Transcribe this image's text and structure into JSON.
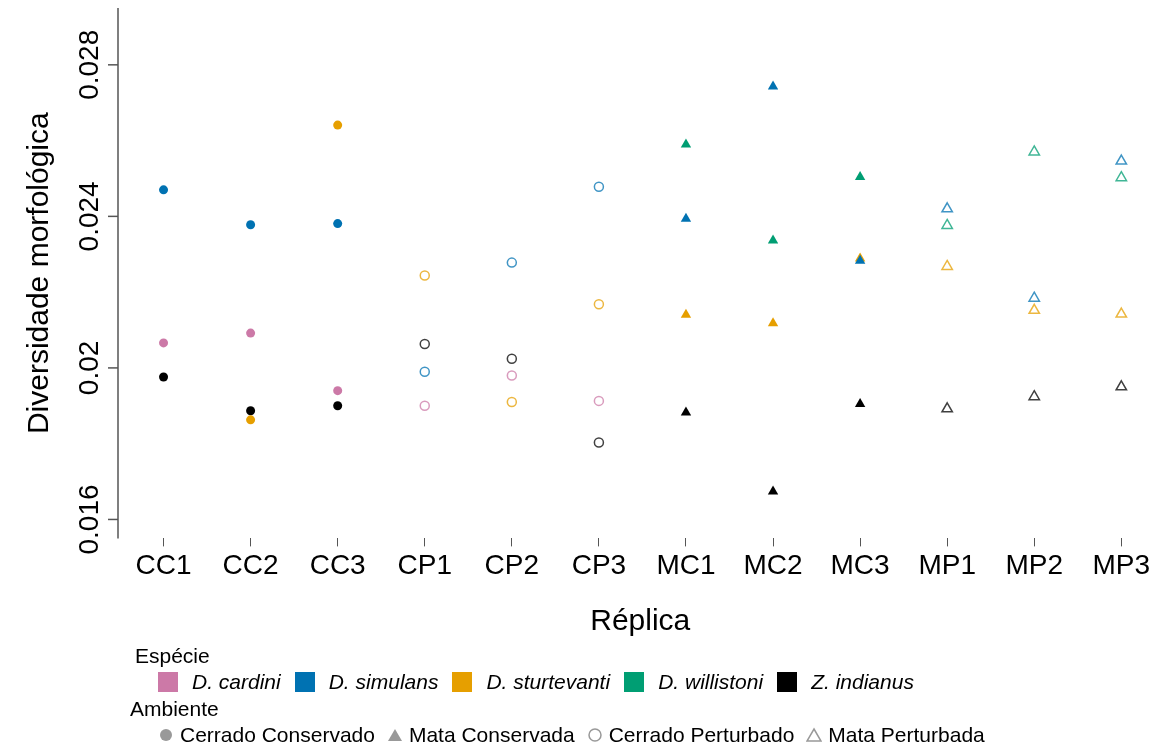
{
  "chart_data": {
    "type": "scatter",
    "xlabel": "Réplica",
    "ylabel": "Diversidade morfológica",
    "categories": [
      "CC1",
      "CC2",
      "CC3",
      "CP1",
      "CP2",
      "CP3",
      "MC1",
      "MC2",
      "MC3",
      "MP1",
      "MP2",
      "MP3"
    ],
    "ylim": [
      0.0155,
      0.0295
    ],
    "yticks": [
      0.016,
      0.02,
      0.024,
      0.028
    ],
    "grid": false,
    "legend": "bottom",
    "legend_title": [
      "Espécie",
      "Ambiente"
    ],
    "series": [
      {
        "name": "D. cardini",
        "color": "#cc79a7",
        "x": [
          "CC1",
          "CC2",
          "CC3",
          "CP1",
          "CP2",
          "CP3"
        ],
        "values": [
          0.02066,
          0.02092,
          0.0194,
          0.019,
          0.0198,
          0.01913
        ]
      },
      {
        "name": "D. simulans",
        "color": "#0072b2",
        "x": [
          "CC1",
          "CC2",
          "CC3",
          "CP1",
          "CP2",
          "CP3",
          "MC1",
          "MC2",
          "MC3",
          "MP1",
          "MP2",
          "MP3"
        ],
        "values": [
          0.0247,
          0.02378,
          0.02381,
          0.0199,
          0.02278,
          0.02478,
          0.02394,
          0.02743,
          0.02283,
          0.0242,
          0.02184,
          0.02546
        ]
      },
      {
        "name": "D. sturtevanti",
        "color": "#e69f00",
        "x": [
          "CC2",
          "CC3",
          "CP1",
          "CP2",
          "CP3",
          "MC1",
          "MC2",
          "MC3",
          "MP1",
          "MP2",
          "MP3"
        ],
        "values": [
          0.01863,
          0.02641,
          0.02244,
          0.0191,
          0.02168,
          0.0214,
          0.02118,
          0.02289,
          0.02268,
          0.02152,
          0.02142
        ]
      },
      {
        "name": "D. willistoni",
        "color": "#009e73",
        "x": [
          "MC1",
          "MC2",
          "MC3",
          "MP1",
          "MP2",
          "MP3"
        ],
        "values": [
          0.0259,
          0.02336,
          0.02504,
          0.02376,
          0.0257,
          0.02502
        ]
      },
      {
        "name": "Z. indianus",
        "color": "#000000",
        "x": [
          "CC1",
          "CC2",
          "CC3",
          "CP1",
          "CP2",
          "CP3",
          "MC1",
          "MC2",
          "MC3",
          "MP1",
          "MP2",
          "MP3"
        ],
        "values": [
          0.01976,
          0.01887,
          0.019,
          0.02063,
          0.02024,
          0.01803,
          0.01882,
          0.01674,
          0.01905,
          0.01892,
          0.01924,
          0.0195
        ]
      },
      {
        "name": "Cerrado Conservado",
        "color": "#999999",
        "marker": "circle",
        "x": [
          "CC1",
          "CC2",
          "CC3"
        ],
        "values": [
          null,
          null,
          null
        ]
      },
      {
        "name": "Mata Conservada",
        "color": "#999999",
        "marker": "triangle",
        "x": [
          "MC1",
          "MC2",
          "MC3"
        ],
        "values": [
          null,
          null,
          null
        ]
      },
      {
        "name": "Cerrado Perturbado",
        "color": "#999999",
        "marker": "circle-open",
        "x": [
          "CP1",
          "CP2",
          "CP3"
        ],
        "values": [
          null,
          null,
          null
        ]
      },
      {
        "name": "Mata Perturbada",
        "color": "#999999",
        "marker": "triangle-open",
        "x": [
          "MP1",
          "MP2",
          "MP3"
        ],
        "values": [
          null,
          null,
          null
        ]
      }
    ]
  }
}
